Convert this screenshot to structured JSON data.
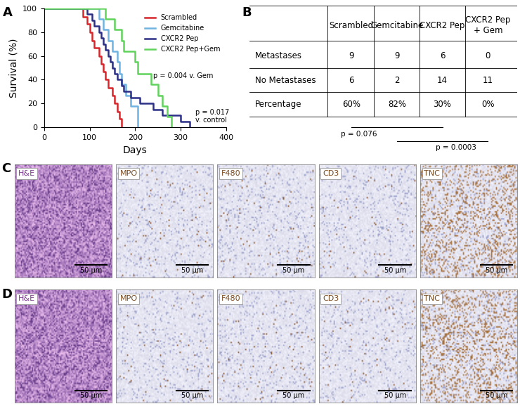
{
  "chart_data": {
    "type": "step",
    "panel_label": "A",
    "xlabel": "Days",
    "ylabel": "Survival (%)",
    "xlim": [
      0,
      400
    ],
    "xticks": [
      0,
      100,
      200,
      300,
      400
    ],
    "ylim": [
      0,
      100
    ],
    "yticks": [
      0,
      20,
      40,
      60,
      80,
      100
    ],
    "legend": "upper right",
    "series": [
      {
        "name": "Scrambled",
        "color": "#d7262b",
        "x": [
          0,
          85,
          95,
          100,
          105,
          110,
          120,
          125,
          130,
          135,
          140,
          150,
          155,
          160,
          165,
          170
        ],
        "values": [
          100,
          93,
          87,
          80,
          73,
          67,
          60,
          53,
          47,
          40,
          33,
          27,
          20,
          13,
          7,
          0
        ]
      },
      {
        "name": "Gemcitabine",
        "color": "#6fb3e0",
        "x": [
          0,
          120,
          130,
          140,
          150,
          160,
          165,
          170,
          180,
          190,
          205
        ],
        "values": [
          100,
          91,
          82,
          73,
          64,
          55,
          45,
          36,
          27,
          18,
          0
        ]
      },
      {
        "name": "CXCR2 Pep",
        "color": "#2b2f86",
        "x": [
          0,
          95,
          105,
          110,
          120,
          125,
          130,
          135,
          140,
          145,
          150,
          155,
          160,
          170,
          175,
          190,
          210,
          240,
          260,
          300,
          320
        ],
        "values": [
          100,
          95,
          90,
          85,
          80,
          75,
          70,
          65,
          60,
          55,
          50,
          45,
          40,
          35,
          30,
          25,
          20,
          15,
          10,
          5,
          0
        ]
      },
      {
        "name": "CXCR2 Pep+Gem",
        "color": "#5fd35a",
        "x": [
          0,
          135,
          155,
          170,
          175,
          200,
          205,
          235,
          250,
          260,
          270,
          280
        ],
        "values": [
          100,
          91,
          82,
          73,
          64,
          55,
          45,
          36,
          27,
          18,
          9,
          0
        ]
      }
    ],
    "annotations": [
      "p = 0.004 v. Gem",
      "p = 0.017\nv. control"
    ]
  },
  "table": {
    "panel_label": "B",
    "header": [
      "",
      "Scrambled",
      "Gemcitabine",
      "CXCR2 Pep",
      "CXCR2 Pep\n+ Gem"
    ],
    "rows": [
      [
        "Metastases",
        "9",
        "9",
        "6",
        "0"
      ],
      [
        "No Metastases",
        "6",
        "2",
        "14",
        "11"
      ],
      [
        "Percentage",
        "60%",
        "82%",
        "30%",
        "0%"
      ]
    ],
    "comparisons": [
      {
        "from": 0,
        "to": 2,
        "text": "p = 0.076"
      },
      {
        "from": 1,
        "to": 3,
        "text": "p = 0.0003"
      }
    ]
  },
  "image_rows": [
    {
      "panel_label": "C",
      "images": [
        {
          "stain": "H&E",
          "scale_bar": "50 µm"
        },
        {
          "stain": "MPO",
          "scale_bar": "50 µm"
        },
        {
          "stain": "F480",
          "scale_bar": "50 µm"
        },
        {
          "stain": "CD3",
          "scale_bar": "50 µm"
        },
        {
          "stain": "TNC",
          "scale_bar": "50 µm"
        }
      ]
    },
    {
      "panel_label": "D",
      "images": [
        {
          "stain": "H&E",
          "scale_bar": "50 µm"
        },
        {
          "stain": "MPO",
          "scale_bar": "50 µm"
        },
        {
          "stain": "F480",
          "scale_bar": "50 µm"
        },
        {
          "stain": "CD3",
          "scale_bar": "50 µm"
        },
        {
          "stain": "TNC",
          "scale_bar": "50 µm"
        }
      ]
    }
  ]
}
